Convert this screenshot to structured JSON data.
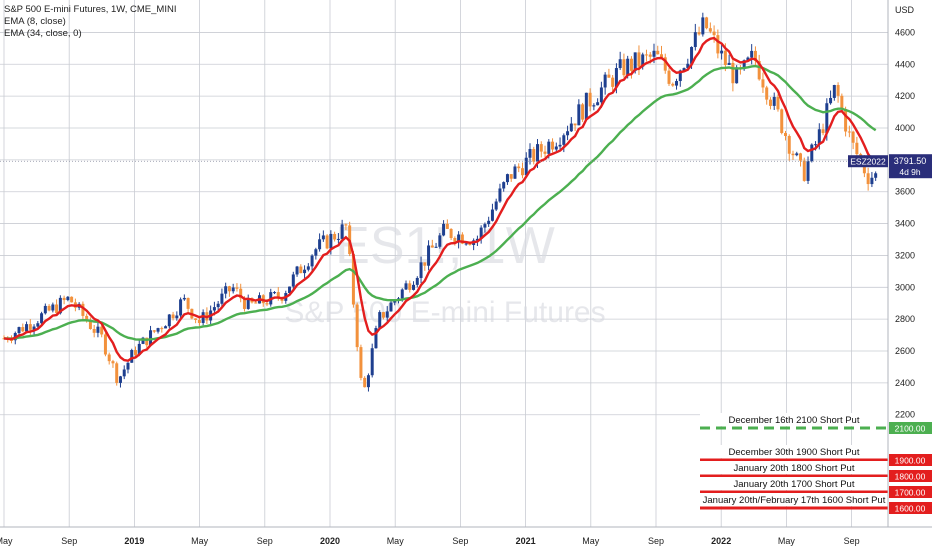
{
  "legend": {
    "title": "S&P 500 E-mini Futures, 1W, CME_MINI",
    "ema_fast": "EMA (8, close)",
    "ema_slow": "EMA (34, close, 0)"
  },
  "watermark": {
    "symbol": "ES1!, 1W",
    "name": "S&P 500 E-mini Futures"
  },
  "currency": "USD",
  "last_price": {
    "symbol": "ESZ2022",
    "price": "3791.50",
    "countdown": "4d 9h"
  },
  "colors": {
    "background": "#ffffff",
    "grid": "#c9ccd3",
    "up_candle": "#1e3f8f",
    "down_candle": "#f2913c",
    "ema_fast": "#e31e1e",
    "ema_slow": "#4caf50",
    "level_red": "#e31e1e",
    "level_green": "#4caf50",
    "price_tag": "#2a2e7a"
  },
  "chart_data": {
    "type": "candlestick",
    "interval": "1W",
    "ylim": [
      2000,
      4750
    ],
    "y_ticks": [
      2200,
      2400,
      2600,
      2800,
      3000,
      3200,
      3400,
      3600,
      3800,
      4000,
      4200,
      4400,
      4600
    ],
    "x_ticks": [
      "May",
      "Sep",
      "2019",
      "May",
      "Sep",
      "2020",
      "May",
      "Sep",
      "2021",
      "May",
      "Sep",
      "2022",
      "May",
      "Sep"
    ],
    "x_ticks_bold": [
      "2019",
      "2020",
      "2021",
      "2022"
    ],
    "x_range": [
      "2018-05",
      "2022-10"
    ],
    "grid": true,
    "series": [
      {
        "name": "EMA (8, close)",
        "role": "ema_fast"
      },
      {
        "name": "EMA (34, close, 0)",
        "role": "ema_slow"
      }
    ],
    "price_path": [
      [
        "2018-05",
        2680
      ],
      [
        "2018-07",
        2800
      ],
      [
        "2018-09",
        2930
      ],
      [
        "2018-10",
        2800
      ],
      [
        "2018-11",
        2680
      ],
      [
        "2018-12",
        2420
      ],
      [
        "2019-01",
        2600
      ],
      [
        "2019-03",
        2800
      ],
      [
        "2019-04",
        2920
      ],
      [
        "2019-05",
        2780
      ],
      [
        "2019-07",
        3000
      ],
      [
        "2019-08",
        2880
      ],
      [
        "2019-10",
        2950
      ],
      [
        "2019-12",
        3230
      ],
      [
        "2020-02",
        3380
      ],
      [
        "2020-03",
        2300
      ],
      [
        "2020-04",
        2800
      ],
      [
        "2020-06",
        3050
      ],
      [
        "2020-08",
        3350
      ],
      [
        "2020-10",
        3300
      ],
      [
        "2020-12",
        3700
      ],
      [
        "2021-03",
        3950
      ],
      [
        "2021-05",
        4180
      ],
      [
        "2021-07",
        4380
      ],
      [
        "2021-09",
        4450
      ],
      [
        "2021-10",
        4300
      ],
      [
        "2021-12",
        4650
      ],
      [
        "2022-01",
        4450
      ],
      [
        "2022-02",
        4300
      ],
      [
        "2022-03",
        4450
      ],
      [
        "2022-04",
        4200
      ],
      [
        "2022-05",
        3950
      ],
      [
        "2022-06",
        3700
      ],
      [
        "2022-07",
        3950
      ],
      [
        "2022-08",
        4250
      ],
      [
        "2022-09",
        3900
      ],
      [
        "2022-10",
        3700
      ]
    ],
    "last_price": 3791.5,
    "levels": [
      {
        "price": 2100,
        "label": "December 16th 2100 Short Put",
        "price_label": "2100.00",
        "style": "dashed",
        "color": "green"
      },
      {
        "price": 1900,
        "label": "December 30th 1900 Short Put",
        "price_label": "1900.00",
        "style": "solid",
        "color": "red"
      },
      {
        "price": 1800,
        "label": "January 20th 1800 Short Put",
        "price_label": "1800.00",
        "style": "solid",
        "color": "red"
      },
      {
        "price": 1700,
        "label": "January 20th 1700 Short Put",
        "price_label": "1700.00",
        "style": "solid",
        "color": "red"
      },
      {
        "price": 1600,
        "label": "January 20th/February 17th 1600 Short Put",
        "price_label": "1600.00",
        "style": "solid",
        "color": "red"
      }
    ]
  }
}
